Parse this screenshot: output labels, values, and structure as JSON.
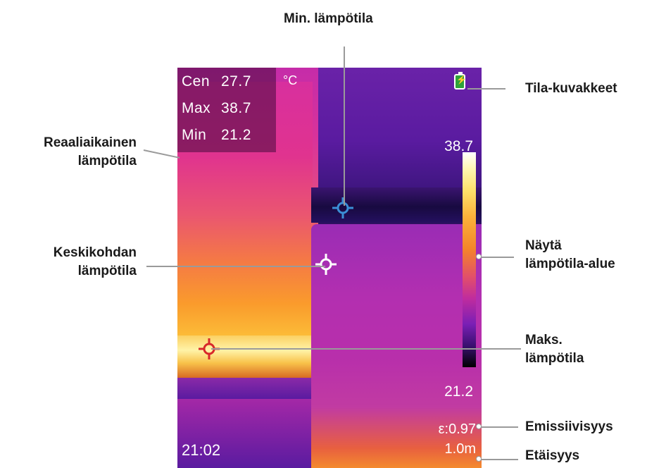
{
  "callouts": {
    "min_temp": "Min. lämpötila",
    "status_icons": "Tila-kuvakkeet",
    "realtime_temp": [
      "Reaaliaikainen",
      "lämpötila"
    ],
    "center_temp": [
      "Keskikohdan",
      "lämpötila"
    ],
    "show_range": [
      "Näytä",
      "lämpötila-alue"
    ],
    "max_temp": [
      "Maks.",
      "lämpötila"
    ],
    "emissivity": "Emissiivisyys",
    "distance": "Etäisyys"
  },
  "readout": {
    "rows": [
      {
        "label": "Cen",
        "value": "27.7"
      },
      {
        "label": "Max",
        "value": "38.7"
      },
      {
        "label": "Min",
        "value": "21.2"
      }
    ],
    "unit": "°C"
  },
  "scale": {
    "max": "38.7",
    "min": "21.2"
  },
  "emissivity": "ε:0.97",
  "time": "21:02",
  "distance": "1.0m",
  "icons": {
    "battery": "battery-charging-icon"
  },
  "colors": {
    "center_marker": "#ffffff",
    "min_marker": "#3b8fd6",
    "max_marker": "#d8282a"
  }
}
